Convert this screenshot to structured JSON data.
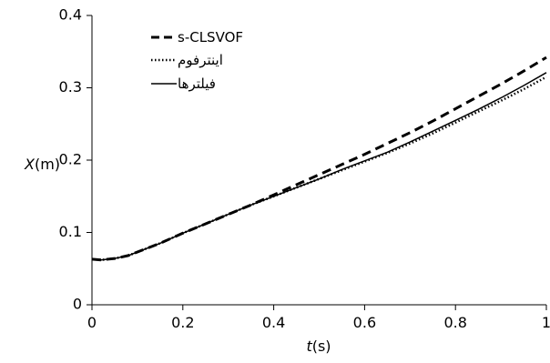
{
  "chart_data": {
    "type": "line",
    "xlabel": {
      "var": "t",
      "unit": "(s)"
    },
    "ylabel": {
      "var": "X",
      "unit": "(m)"
    },
    "xlim": [
      0,
      1
    ],
    "ylim": [
      0,
      0.4
    ],
    "xticks": [
      0,
      0.2,
      0.4,
      0.6,
      0.8,
      1
    ],
    "yticks": [
      0,
      0.1,
      0.2,
      0.3,
      0.4
    ],
    "xtick_labels": [
      "0",
      "0.2",
      "0.4",
      "0.6",
      "0.8",
      "1"
    ],
    "ytick_labels": [
      "0",
      "0.1",
      "0.2",
      "0.3",
      "0.4"
    ],
    "grid": false,
    "legend_position": "top-left",
    "series": [
      {
        "name": "s-CLSVOF",
        "style": "dashed",
        "color": "#000000",
        "x": [
          0,
          0.02,
          0.05,
          0.08,
          0.1,
          0.15,
          0.2,
          0.25,
          0.3,
          0.35,
          0.4,
          0.45,
          0.5,
          0.55,
          0.6,
          0.65,
          0.7,
          0.75,
          0.8,
          0.85,
          0.9,
          0.95,
          1.0
        ],
        "y": [
          0.063,
          0.062,
          0.064,
          0.068,
          0.073,
          0.085,
          0.099,
          0.112,
          0.125,
          0.138,
          0.152,
          0.166,
          0.18,
          0.194,
          0.208,
          0.223,
          0.238,
          0.254,
          0.271,
          0.288,
          0.305,
          0.323,
          0.342
        ]
      },
      {
        "name": "اینترفوم",
        "style": "dotted",
        "color": "#000000",
        "x": [
          0,
          0.02,
          0.05,
          0.08,
          0.1,
          0.15,
          0.2,
          0.25,
          0.3,
          0.35,
          0.4,
          0.45,
          0.5,
          0.55,
          0.6,
          0.65,
          0.7,
          0.75,
          0.8,
          0.85,
          0.9,
          0.95,
          1.0
        ],
        "y": [
          0.063,
          0.062,
          0.064,
          0.068,
          0.073,
          0.085,
          0.099,
          0.112,
          0.125,
          0.138,
          0.15,
          0.162,
          0.174,
          0.186,
          0.198,
          0.21,
          0.223,
          0.237,
          0.252,
          0.267,
          0.282,
          0.298,
          0.315
        ]
      },
      {
        "name": "فیلترها",
        "style": "solid",
        "color": "#000000",
        "x": [
          0,
          0.02,
          0.05,
          0.08,
          0.1,
          0.15,
          0.2,
          0.25,
          0.3,
          0.35,
          0.4,
          0.45,
          0.5,
          0.55,
          0.6,
          0.65,
          0.7,
          0.75,
          0.8,
          0.85,
          0.9,
          0.95,
          1.0
        ],
        "y": [
          0.063,
          0.062,
          0.064,
          0.068,
          0.073,
          0.085,
          0.099,
          0.112,
          0.125,
          0.138,
          0.15,
          0.162,
          0.174,
          0.187,
          0.199,
          0.211,
          0.225,
          0.24,
          0.255,
          0.27,
          0.286,
          0.303,
          0.321
        ]
      }
    ]
  }
}
